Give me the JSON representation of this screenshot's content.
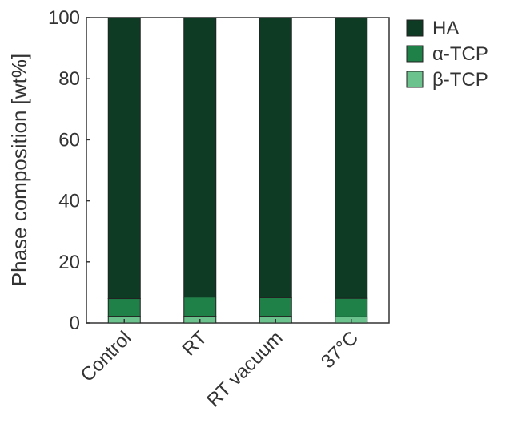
{
  "chart_data": {
    "type": "bar",
    "stacked": true,
    "categories": [
      "Control",
      "RT",
      "RT vacuum",
      "37°C"
    ],
    "series": [
      {
        "name": "β-TCP",
        "values": [
          2.2,
          2.2,
          2.2,
          2.0
        ],
        "color": "#6cc28c"
      },
      {
        "name": "α-TCP",
        "values": [
          5.8,
          6.3,
          6.1,
          6.1
        ],
        "color": "#1f8048"
      },
      {
        "name": "HA",
        "values": [
          92.0,
          91.5,
          91.7,
          91.9
        ],
        "color": "#0d3b24"
      }
    ],
    "title": "",
    "xlabel": "",
    "ylabel": "Phase composition [wt%]",
    "ylim": [
      0,
      100
    ],
    "yticks": [
      0,
      20,
      40,
      60,
      80,
      100
    ],
    "grid": false,
    "legend": {
      "placement": "right",
      "order": [
        "HA",
        "α-TCP",
        "β-TCP"
      ]
    }
  }
}
